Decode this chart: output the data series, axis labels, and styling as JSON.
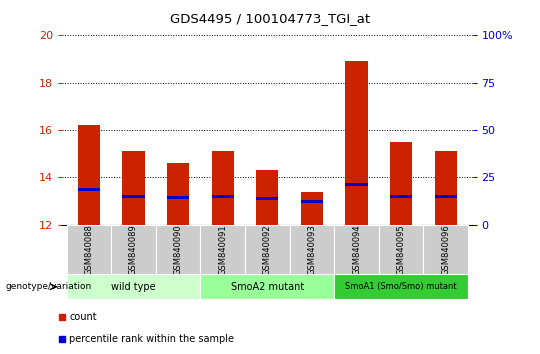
{
  "title": "GDS4495 / 100104773_TGI_at",
  "samples": [
    "GSM840088",
    "GSM840089",
    "GSM840090",
    "GSM840091",
    "GSM840092",
    "GSM840093",
    "GSM840094",
    "GSM840095",
    "GSM840096"
  ],
  "count_values": [
    16.2,
    15.1,
    14.6,
    15.1,
    14.3,
    13.4,
    18.9,
    15.5,
    15.1
  ],
  "percentile_values": [
    13.5,
    13.2,
    13.15,
    13.2,
    13.1,
    13.0,
    13.7,
    13.2,
    13.2
  ],
  "bar_bottom": 12,
  "ylim_left": [
    12,
    20
  ],
  "ylim_right": [
    0,
    100
  ],
  "yticks_left": [
    12,
    14,
    16,
    18,
    20
  ],
  "yticks_right": [
    0,
    25,
    50,
    75,
    100
  ],
  "ytick_labels_right": [
    "0",
    "25",
    "50",
    "75",
    "100%"
  ],
  "groups": [
    {
      "label": "wild type",
      "indices": [
        0,
        1,
        2
      ],
      "color": "#ccffcc"
    },
    {
      "label": "SmoA2 mutant",
      "indices": [
        3,
        4,
        5
      ],
      "color": "#99ff99"
    },
    {
      "label": "SmoA1 (Smo/Smo) mutant",
      "indices": [
        6,
        7,
        8
      ],
      "color": "#33cc33"
    }
  ],
  "count_color": "#cc2200",
  "percentile_color": "#0000cc",
  "bar_width": 0.5,
  "bg_plot": "#ffffff",
  "bg_xlabels": "#cccccc",
  "left_tick_color": "#cc2200",
  "right_tick_color": "#0000cc",
  "legend_count_label": "count",
  "legend_percentile_label": "percentile rank within the sample",
  "genotype_label": "genotype/variation",
  "main_axes": [
    0.115,
    0.365,
    0.76,
    0.535
  ],
  "xlabels_axes": [
    0.115,
    0.225,
    0.76,
    0.14
  ],
  "groups_axes": [
    0.115,
    0.155,
    0.76,
    0.07
  ]
}
